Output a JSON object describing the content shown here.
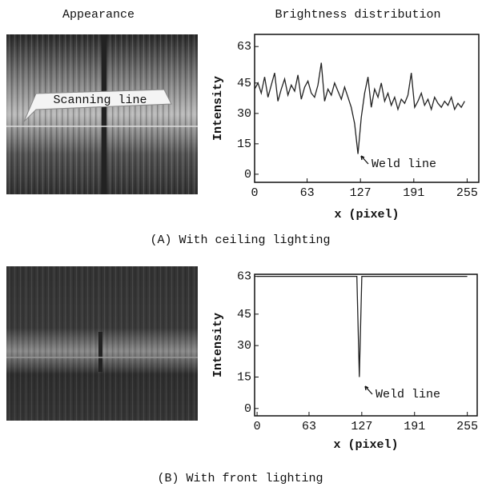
{
  "column_headers": [
    "Appearance",
    "Brightness distribution"
  ],
  "image_label": "Scanning line",
  "chart_data": [
    {
      "type": "line",
      "caption": "(A) With ceiling lighting",
      "xlabel": "x (pixel)",
      "ylabel": "Intensity",
      "annotation": "Weld line",
      "x": [
        0,
        4,
        8,
        12,
        16,
        20,
        24,
        28,
        32,
        36,
        40,
        44,
        48,
        52,
        56,
        60,
        64,
        68,
        72,
        76,
        80,
        84,
        88,
        92,
        96,
        100,
        104,
        108,
        112,
        116,
        120,
        124,
        128,
        132,
        136,
        140,
        144,
        148,
        152,
        156,
        160,
        164,
        168,
        172,
        176,
        180,
        184,
        188,
        192,
        196,
        200,
        204,
        208,
        212,
        216,
        220,
        224,
        228,
        232,
        236,
        240,
        244,
        248,
        252
      ],
      "values": [
        42,
        45,
        40,
        48,
        38,
        44,
        50,
        36,
        42,
        47,
        39,
        44,
        41,
        49,
        37,
        43,
        46,
        40,
        38,
        44,
        55,
        36,
        42,
        39,
        45,
        41,
        37,
        43,
        38,
        33,
        25,
        10,
        28,
        40,
        48,
        33,
        42,
        38,
        45,
        36,
        40,
        34,
        38,
        32,
        37,
        35,
        39,
        50,
        33,
        36,
        40,
        34,
        37,
        32,
        38,
        35,
        33,
        36,
        34,
        38,
        32,
        35,
        33,
        36
      ],
      "color": "#222222",
      "xlim": [
        0,
        269
      ],
      "ylim": [
        -4,
        69
      ],
      "xticks": [
        0,
        63,
        127,
        191,
        255
      ],
      "yticks": [
        0,
        15,
        30,
        45,
        63
      ]
    },
    {
      "type": "line",
      "caption": "(B) With front lighting",
      "xlabel": "x (pixel)",
      "ylabel": "Intensity",
      "annotation": "Weld line",
      "x": [
        0,
        121,
        124,
        127,
        255
      ],
      "values": [
        63,
        63,
        15,
        63,
        63
      ],
      "color": "#222222",
      "xlim": [
        -3,
        267
      ],
      "ylim": [
        -3.5,
        64
      ],
      "xticks": [
        0,
        63,
        127,
        191,
        255
      ],
      "yticks": [
        0,
        15,
        30,
        45,
        63
      ]
    }
  ]
}
